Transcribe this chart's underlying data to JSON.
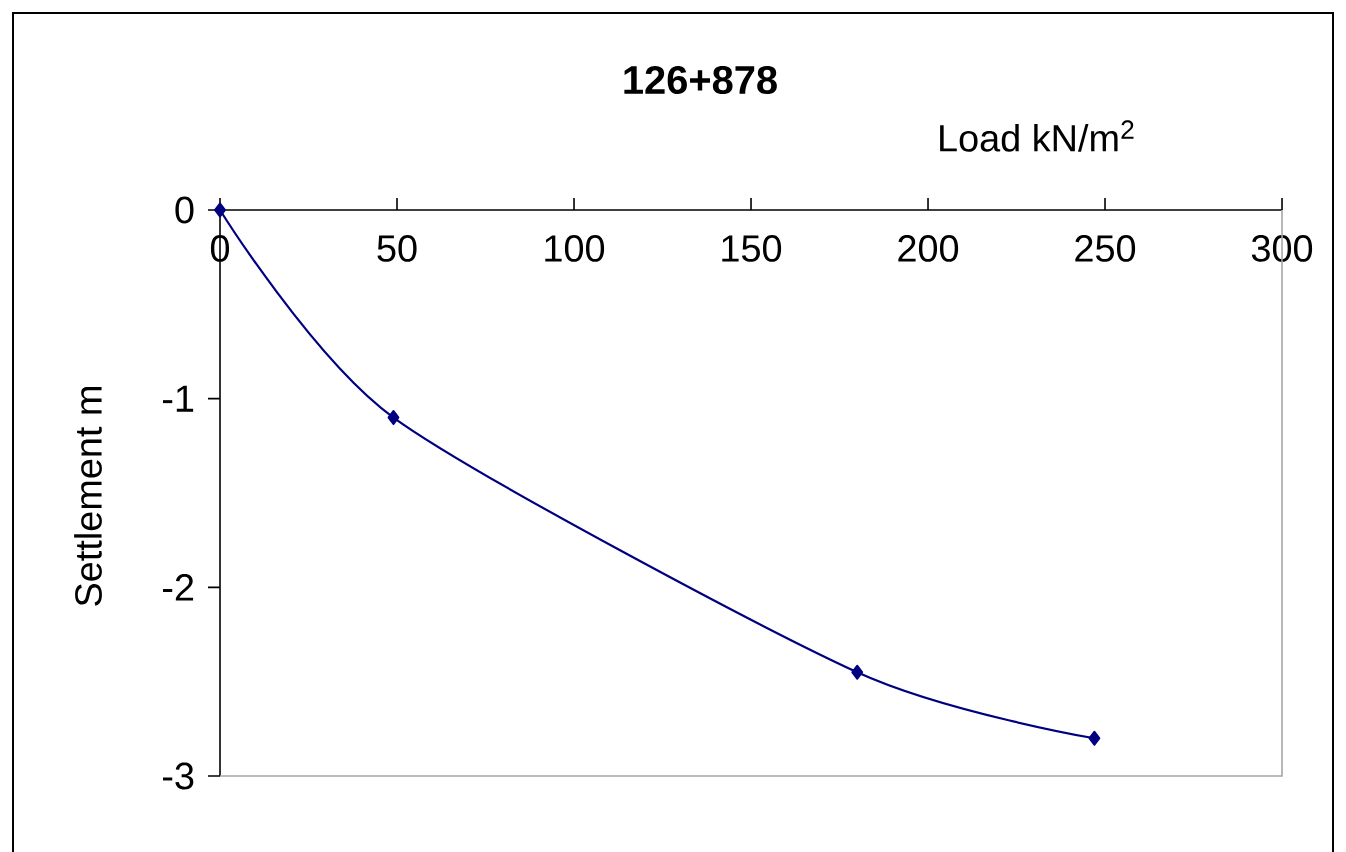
{
  "chart_data": {
    "type": "line",
    "title": "126+878",
    "xlabel": "Load  kN/m$^{2}$",
    "ylabel": "Settlement   m",
    "x": [
      0,
      49,
      180,
      247
    ],
    "series": [
      {
        "color": "#000080",
        "values": [
          0,
          -1.1,
          -2.45,
          -2.8
        ]
      }
    ],
    "xlim": [
      0,
      300
    ],
    "xticks": [
      0,
      50,
      100,
      150,
      200,
      250,
      300
    ],
    "ylim": [
      -3,
      0
    ],
    "yticks": [
      -3,
      -2,
      -1,
      0
    ],
    "grid": false,
    "marker": "diamond",
    "line_style": "solid"
  }
}
